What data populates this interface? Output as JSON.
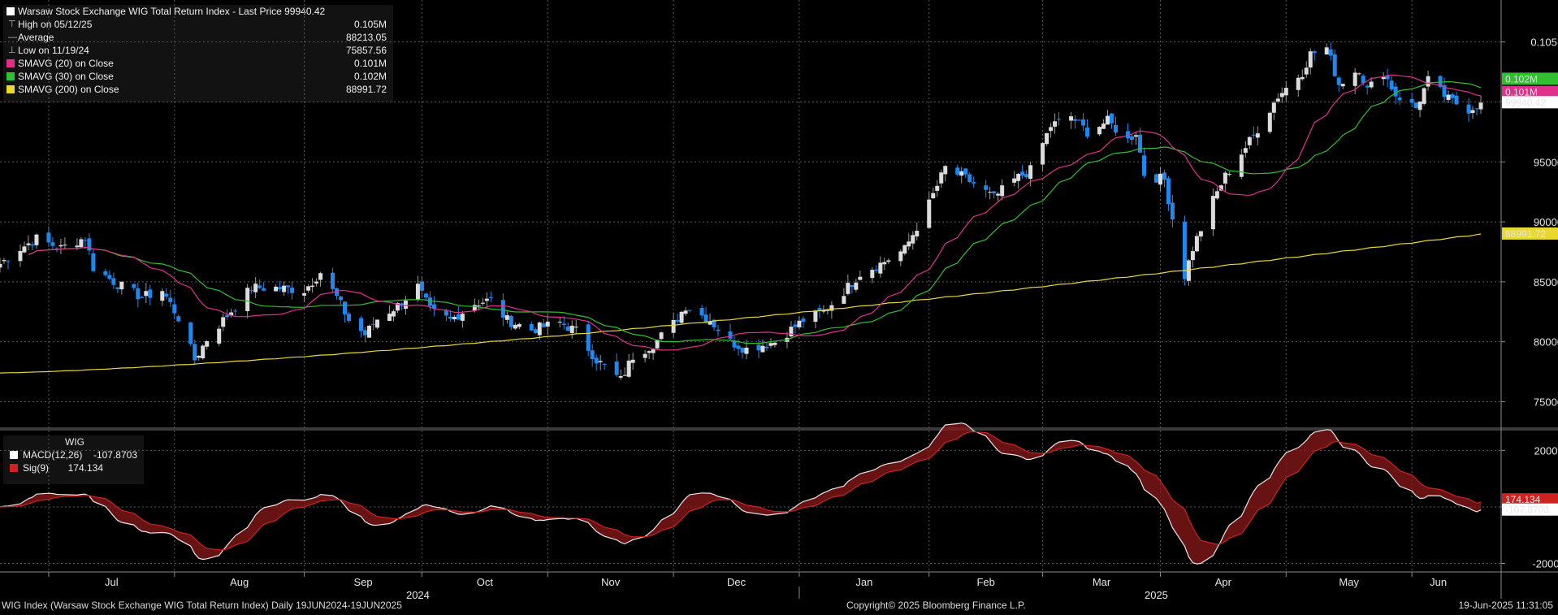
{
  "legend": {
    "title": "Warsaw Stock Exchange WIG Total Return Index - Last Price 99940.42",
    "high_label": "High on 05/12/25",
    "high_value": "0.105M",
    "avg_label": "Average",
    "avg_value": "88213.05",
    "low_label": "Low on 11/19/24",
    "low_value": "75857.56",
    "sma20_label": "SMAVG (20) on Close",
    "sma20_value": "0.101M",
    "sma30_label": "SMAVG (30) on Close",
    "sma30_value": "0.102M",
    "sma200_label": "SMAVG (200) on Close",
    "sma200_value": "88991.72"
  },
  "macd_legend": {
    "title": "WIG",
    "macd_label": "MACD(12,26)",
    "macd_value": "-107.8703",
    "sig_label": "Sig(9)",
    "sig_value": "174.134"
  },
  "footer": {
    "left": "WIG Index (Warsaw Stock Exchange WIG Total Return Index)  Daily 19JUN2024-19JUN2025",
    "center": "Copyright© 2025 Bloomberg Finance L.P.",
    "right": "19-Jun-2025 11:31:05"
  },
  "colors": {
    "background": "#000000",
    "up_candle": "#dcdcdc",
    "down_candle": "#1e88f0",
    "sma20": "#e0308c",
    "sma30": "#30c030",
    "sma200": "#e8d830",
    "macd_line": "#e8e8e8",
    "signal_line": "#d02020",
    "grid": "#5a5a5a"
  },
  "chart_data": [
    {
      "type": "candlestick",
      "title": "Warsaw Stock Exchange WIG Total Return Index - Last Price 99940.42",
      "ylim": [
        73000,
        108500
      ],
      "y_ticks": [
        75000,
        80000,
        85000,
        90000,
        95000,
        100000,
        105000
      ],
      "y_tick_labels": [
        "75000",
        "80000",
        "85000",
        "90000",
        "95000",
        "",
        "0.105M"
      ],
      "x_months": [
        {
          "label": "Jul",
          "date": "2024-07-01"
        },
        {
          "label": "Aug",
          "date": "2024-08-01"
        },
        {
          "label": "Sep",
          "date": "2024-09-02"
        },
        {
          "label": "Oct",
          "date": "2024-10-01"
        },
        {
          "label": "Nov",
          "date": "2024-11-01"
        },
        {
          "label": "Dec",
          "date": "2024-12-02"
        },
        {
          "label": "Jan",
          "date": "2025-01-02"
        },
        {
          "label": "Feb",
          "date": "2025-02-03"
        },
        {
          "label": "Mar",
          "date": "2025-03-03"
        },
        {
          "label": "Apr",
          "date": "2025-04-01"
        },
        {
          "label": "May",
          "date": "2025-05-02"
        },
        {
          "label": "Jun",
          "date": "2025-06-02"
        }
      ],
      "x_years": [
        {
          "label": "2024",
          "date": "2024-09-30"
        },
        {
          "label": "2025",
          "date": "2025-03-31"
        }
      ],
      "close_anchors": [
        [
          "2024-06-19",
          86500
        ],
        [
          "2024-06-24",
          87800
        ],
        [
          "2024-06-28",
          88600
        ],
        [
          "2024-07-04",
          87800
        ],
        [
          "2024-07-10",
          88700
        ],
        [
          "2024-07-12",
          86200
        ],
        [
          "2024-07-18",
          84800
        ],
        [
          "2024-07-24",
          83700
        ],
        [
          "2024-07-29",
          84300
        ],
        [
          "2024-08-02",
          82000
        ],
        [
          "2024-08-06",
          78500
        ],
        [
          "2024-08-09",
          80200
        ],
        [
          "2024-08-14",
          82200
        ],
        [
          "2024-08-20",
          84500
        ],
        [
          "2024-08-26",
          84500
        ],
        [
          "2024-09-02",
          84300
        ],
        [
          "2024-09-06",
          85800
        ],
        [
          "2024-09-10",
          83700
        ],
        [
          "2024-09-13",
          81800
        ],
        [
          "2024-09-17",
          80600
        ],
        [
          "2024-09-20",
          81900
        ],
        [
          "2024-09-25",
          83000
        ],
        [
          "2024-09-30",
          84600
        ],
        [
          "2024-10-03",
          82600
        ],
        [
          "2024-10-08",
          81800
        ],
        [
          "2024-10-14",
          83200
        ],
        [
          "2024-10-18",
          83500
        ],
        [
          "2024-10-22",
          81800
        ],
        [
          "2024-10-28",
          81000
        ],
        [
          "2024-11-04",
          81600
        ],
        [
          "2024-11-08",
          80900
        ],
        [
          "2024-11-13",
          78500
        ],
        [
          "2024-11-19",
          76800
        ],
        [
          "2024-11-22",
          78800
        ],
        [
          "2024-11-27",
          79800
        ],
        [
          "2024-12-02",
          81500
        ],
        [
          "2024-12-05",
          83000
        ],
        [
          "2024-12-11",
          81800
        ],
        [
          "2024-12-16",
          80000
        ],
        [
          "2024-12-20",
          79400
        ],
        [
          "2024-12-27",
          80000
        ],
        [
          "2025-01-03",
          81800
        ],
        [
          "2025-01-08",
          82500
        ],
        [
          "2025-01-13",
          84200
        ],
        [
          "2025-01-17",
          85700
        ],
        [
          "2025-01-22",
          86500
        ],
        [
          "2025-01-28",
          87700
        ],
        [
          "2025-02-03",
          91500
        ],
        [
          "2025-02-07",
          94500
        ],
        [
          "2025-02-11",
          93800
        ],
        [
          "2025-02-14",
          93200
        ],
        [
          "2025-02-19",
          92000
        ],
        [
          "2025-02-24",
          93500
        ],
        [
          "2025-02-28",
          94300
        ],
        [
          "2025-03-05",
          98000
        ],
        [
          "2025-03-10",
          98800
        ],
        [
          "2025-03-14",
          97500
        ],
        [
          "2025-03-19",
          98400
        ],
        [
          "2025-03-24",
          96800
        ],
        [
          "2025-03-26",
          97500
        ],
        [
          "2025-03-28",
          94000
        ],
        [
          "2025-04-02",
          93500
        ],
        [
          "2025-04-07",
          85500
        ],
        [
          "2025-04-09",
          87800
        ],
        [
          "2025-04-14",
          91800
        ],
        [
          "2025-04-17",
          93800
        ],
        [
          "2025-04-24",
          97200
        ],
        [
          "2025-04-30",
          100500
        ],
        [
          "2025-05-06",
          102500
        ],
        [
          "2025-05-08",
          104000
        ],
        [
          "2025-05-12",
          104500
        ],
        [
          "2025-05-15",
          101500
        ],
        [
          "2025-05-20",
          102800
        ],
        [
          "2025-05-22",
          101000
        ],
        [
          "2025-05-26",
          102500
        ],
        [
          "2025-05-29",
          100600
        ],
        [
          "2025-06-03",
          99500
        ],
        [
          "2025-06-06",
          101800
        ],
        [
          "2025-06-11",
          100200
        ],
        [
          "2025-06-16",
          99400
        ],
        [
          "2025-06-19",
          99940
        ]
      ],
      "high": {
        "label": "High on 05/12/25",
        "value": 105000
      },
      "average": 88213.05,
      "low": {
        "label": "Low on 11/19/24",
        "value": 75857.56
      },
      "last_price": 99940.42,
      "series": [
        {
          "name": "SMAVG (20) on Close",
          "last": "0.101M"
        },
        {
          "name": "SMAVG (30) on Close",
          "last": "0.102M"
        },
        {
          "name": "SMAVG (200) on Close",
          "last": 88991.72
        }
      ]
    },
    {
      "type": "line",
      "title": "WIG",
      "ylim": [
        -2300,
        2700
      ],
      "y_ticks": [
        -2000,
        0,
        2000
      ],
      "y_tick_labels": [
        "-2000",
        "",
        "2000"
      ],
      "series": [
        {
          "name": "MACD(12,26)",
          "last": -107.8703
        },
        {
          "name": "Sig(9)",
          "last": 174.134
        }
      ]
    }
  ]
}
